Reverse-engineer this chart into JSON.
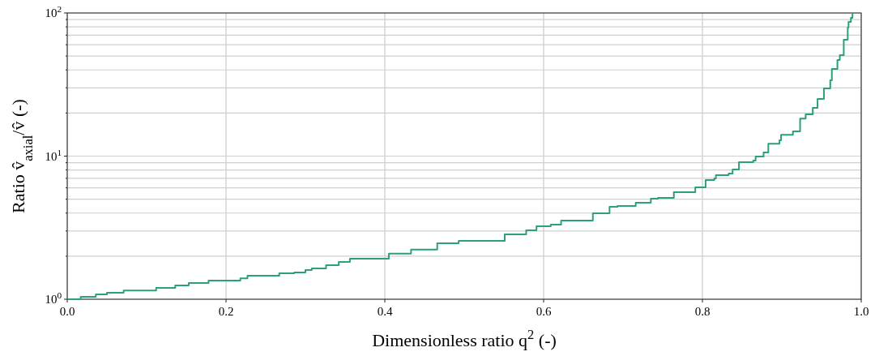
{
  "chart_data": {
    "type": "step",
    "xlabel": "Dimensionless ratio q$^{2}$ (-)",
    "ylabel": "Ratio v̂$_{axial}$/v̂ (-)",
    "log": "y",
    "grid": true,
    "line_style": "solid",
    "marker": "none",
    "xlim": [
      0,
      1
    ],
    "xticks": [
      {
        "value": 0,
        "label": "0.0"
      },
      0.2,
      0.4,
      0.6,
      0.8,
      {
        "value": 1,
        "label": "1.0"
      }
    ],
    "ylim": [
      1,
      100
    ],
    "yticks": [
      {
        "value": 1,
        "label": "10$^{0}$"
      },
      {
        "value": 2,
        "label": null
      },
      {
        "value": 3,
        "label": null
      },
      {
        "value": 4,
        "label": null
      },
      {
        "value": 5,
        "label": null
      },
      {
        "value": 6,
        "label": null
      },
      {
        "value": 7,
        "label": null
      },
      {
        "value": 8,
        "label": null
      },
      {
        "value": 9,
        "label": null
      },
      {
        "value": 10,
        "label": "10$^{1}$"
      },
      {
        "value": 20,
        "label": null
      },
      {
        "value": 30,
        "label": null
      },
      {
        "value": 40,
        "label": null
      },
      {
        "value": 50,
        "label": null
      },
      {
        "value": 60,
        "label": null
      },
      {
        "value": 70,
        "label": null
      },
      {
        "value": 80,
        "label": null
      },
      {
        "value": 90,
        "label": null
      },
      {
        "value": 100,
        "label": "10$^{2}$"
      }
    ],
    "series": [
      {
        "color": "#2ca07a",
        "x": [
          0,
          0.017,
          0.036,
          0.05,
          0.071,
          0.112,
          0.136,
          0.153,
          0.178,
          0.218,
          0.227,
          0.267,
          0.286,
          0.3,
          0.308,
          0.326,
          0.342,
          0.356,
          0.405,
          0.433,
          0.466,
          0.493,
          0.551,
          0.578,
          0.591,
          0.609,
          0.622,
          0.662,
          0.683,
          0.693,
          0.716,
          0.735,
          0.744,
          0.764,
          0.791,
          0.804,
          0.815,
          0.817,
          0.833,
          0.838,
          0.846,
          0.864,
          0.867,
          0.877,
          0.883,
          0.897,
          0.899,
          0.914,
          0.923,
          0.93,
          0.939,
          0.945,
          0.953,
          0.961,
          0.963,
          0.97,
          0.973,
          0.978,
          0.983,
          0.984,
          0.987,
          0.989
        ],
        "values": [
          1,
          1.04,
          1.08,
          1.11,
          1.15,
          1.2,
          1.25,
          1.3,
          1.35,
          1.4,
          1.46,
          1.52,
          1.54,
          1.6,
          1.64,
          1.73,
          1.82,
          1.92,
          2.08,
          2.22,
          2.46,
          2.56,
          2.84,
          3.03,
          3.24,
          3.32,
          3.55,
          3.99,
          4.43,
          4.48,
          4.72,
          5.04,
          5.11,
          5.6,
          6.05,
          6.8,
          6.98,
          7.36,
          7.55,
          8.07,
          9.07,
          9.31,
          9.94,
          10.6,
          12.2,
          12.9,
          14.1,
          14.9,
          18.3,
          19.6,
          21.7,
          25.1,
          29.7,
          33.9,
          40.6,
          46.9,
          50.7,
          65,
          79.1,
          86.6,
          92.5,
          100
        ]
      }
    ]
  }
}
